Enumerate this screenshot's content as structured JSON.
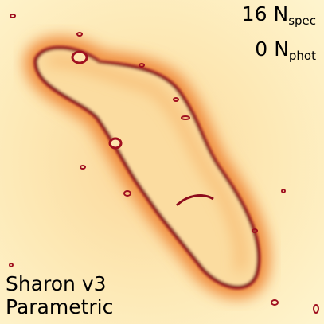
{
  "counts": [
    {
      "value": 16,
      "symbol": "N",
      "subscript": "spec"
    },
    {
      "value": 0,
      "symbol": "N",
      "subscript": "phot"
    }
  ],
  "model": {
    "name": "Sharon v3",
    "kind": "Parametric"
  }
}
